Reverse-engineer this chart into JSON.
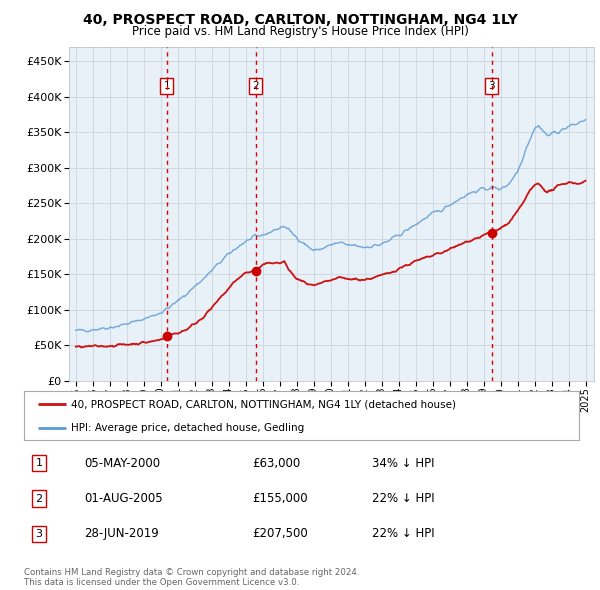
{
  "title": "40, PROSPECT ROAD, CARLTON, NOTTINGHAM, NG4 1LY",
  "subtitle": "Price paid vs. HM Land Registry's House Price Index (HPI)",
  "background_color": "#ffffff",
  "plot_bg_color": "#e8f0f8",
  "grid_color": "#d0d8e0",
  "ylim": [
    0,
    470000
  ],
  "yticks": [
    0,
    50000,
    100000,
    150000,
    200000,
    250000,
    300000,
    350000,
    400000,
    450000
  ],
  "xlim_start": 1994.6,
  "xlim_end": 2025.5,
  "xticks": [
    1995,
    1996,
    1997,
    1998,
    1999,
    2000,
    2001,
    2002,
    2003,
    2004,
    2005,
    2006,
    2007,
    2008,
    2009,
    2010,
    2011,
    2012,
    2013,
    2014,
    2015,
    2016,
    2017,
    2018,
    2019,
    2020,
    2021,
    2022,
    2023,
    2024,
    2025
  ],
  "sale_dates": [
    2000.35,
    2005.58,
    2019.49
  ],
  "sale_prices": [
    63000,
    155000,
    207500
  ],
  "sale_labels": [
    "1",
    "2",
    "3"
  ],
  "vline_color": "#dd0000",
  "marker_color": "#cc0000",
  "red_line_color": "#cc1111",
  "blue_line_color": "#5b9bd5",
  "legend_line1": "40, PROSPECT ROAD, CARLTON, NOTTINGHAM, NG4 1LY (detached house)",
  "legend_line2": "HPI: Average price, detached house, Gedling",
  "table_rows": [
    {
      "label": "1",
      "date": "05-MAY-2000",
      "price": "£63,000",
      "hpi": "34% ↓ HPI"
    },
    {
      "label": "2",
      "date": "01-AUG-2005",
      "price": "£155,000",
      "hpi": "22% ↓ HPI"
    },
    {
      "label": "3",
      "date": "28-JUN-2019",
      "price": "£207,500",
      "hpi": "22% ↓ HPI"
    }
  ],
  "footer": "Contains HM Land Registry data © Crown copyright and database right 2024.\nThis data is licensed under the Open Government Licence v3.0.",
  "hpi_anchors_x": [
    1995,
    1995.5,
    1996,
    1996.5,
    1997,
    1997.5,
    1998,
    1998.5,
    1999,
    1999.5,
    2000,
    2000.5,
    2001,
    2001.5,
    2002,
    2002.5,
    2003,
    2003.5,
    2004,
    2004.5,
    2005,
    2005.5,
    2006,
    2006.5,
    2007,
    2007.25,
    2007.5,
    2007.75,
    2008,
    2008.5,
    2009,
    2009.5,
    2010,
    2010.5,
    2011,
    2011.5,
    2012,
    2012.5,
    2013,
    2013.5,
    2014,
    2014.5,
    2015,
    2015.5,
    2016,
    2016.5,
    2017,
    2017.5,
    2018,
    2018.5,
    2019,
    2019.5,
    2020,
    2020.5,
    2021,
    2021.25,
    2021.5,
    2021.75,
    2022,
    2022.25,
    2022.5,
    2022.75,
    2023,
    2023.5,
    2024,
    2024.5,
    2025
  ],
  "hpi_anchors_y": [
    70000,
    71000,
    72000,
    73500,
    75000,
    77000,
    80000,
    83000,
    87000,
    91000,
    96000,
    103000,
    112000,
    122000,
    133000,
    143000,
    155000,
    167000,
    178000,
    188000,
    196000,
    202000,
    205000,
    210000,
    215000,
    218000,
    213000,
    207000,
    202000,
    192000,
    183000,
    186000,
    191000,
    194000,
    191000,
    190000,
    188000,
    190000,
    192000,
    198000,
    205000,
    212000,
    220000,
    228000,
    235000,
    240000,
    248000,
    255000,
    262000,
    267000,
    270000,
    272000,
    270000,
    278000,
    295000,
    310000,
    328000,
    342000,
    355000,
    360000,
    352000,
    345000,
    348000,
    352000,
    358000,
    362000,
    368000
  ],
  "red_anchors_x": [
    1995,
    1995.5,
    1996,
    1996.5,
    1997,
    1997.5,
    1998,
    1998.5,
    1999,
    1999.5,
    2000,
    2000.35,
    2000.35,
    2001,
    2001.5,
    2002,
    2002.5,
    2003,
    2003.5,
    2004,
    2004.5,
    2005,
    2005.4,
    2005.58,
    2005.58,
    2006,
    2006.5,
    2007,
    2007.25,
    2007.5,
    2007.75,
    2008,
    2008.5,
    2009,
    2009.5,
    2010,
    2010.5,
    2011,
    2011.5,
    2012,
    2012.5,
    2013,
    2013.5,
    2014,
    2014.5,
    2015,
    2015.5,
    2016,
    2016.5,
    2017,
    2017.5,
    2018,
    2018.25,
    2018.5,
    2018.75,
    2019,
    2019.25,
    2019.49,
    2019.49,
    2020,
    2020.5,
    2021,
    2021.25,
    2021.5,
    2021.75,
    2022,
    2022.25,
    2022.5,
    2022.75,
    2023,
    2023.25,
    2023.5,
    2023.75,
    2024,
    2024.5,
    2025
  ],
  "red_anchors_y": [
    47000,
    47500,
    48000,
    48500,
    49000,
    50000,
    51000,
    52000,
    53500,
    55000,
    58000,
    63000,
    63000,
    67000,
    72000,
    80000,
    90000,
    102000,
    116000,
    130000,
    143000,
    152000,
    154000,
    155000,
    155000,
    162000,
    167000,
    165000,
    168000,
    158000,
    150000,
    143000,
    138000,
    133000,
    137000,
    141000,
    145000,
    143000,
    143000,
    142000,
    145000,
    148000,
    152000,
    158000,
    163000,
    168000,
    172000,
    176000,
    180000,
    185000,
    190000,
    196000,
    198000,
    200000,
    202000,
    205000,
    207000,
    207500,
    207500,
    215000,
    222000,
    238000,
    248000,
    258000,
    268000,
    275000,
    278000,
    272000,
    265000,
    268000,
    272000,
    275000,
    278000,
    280000,
    278000,
    280000
  ]
}
